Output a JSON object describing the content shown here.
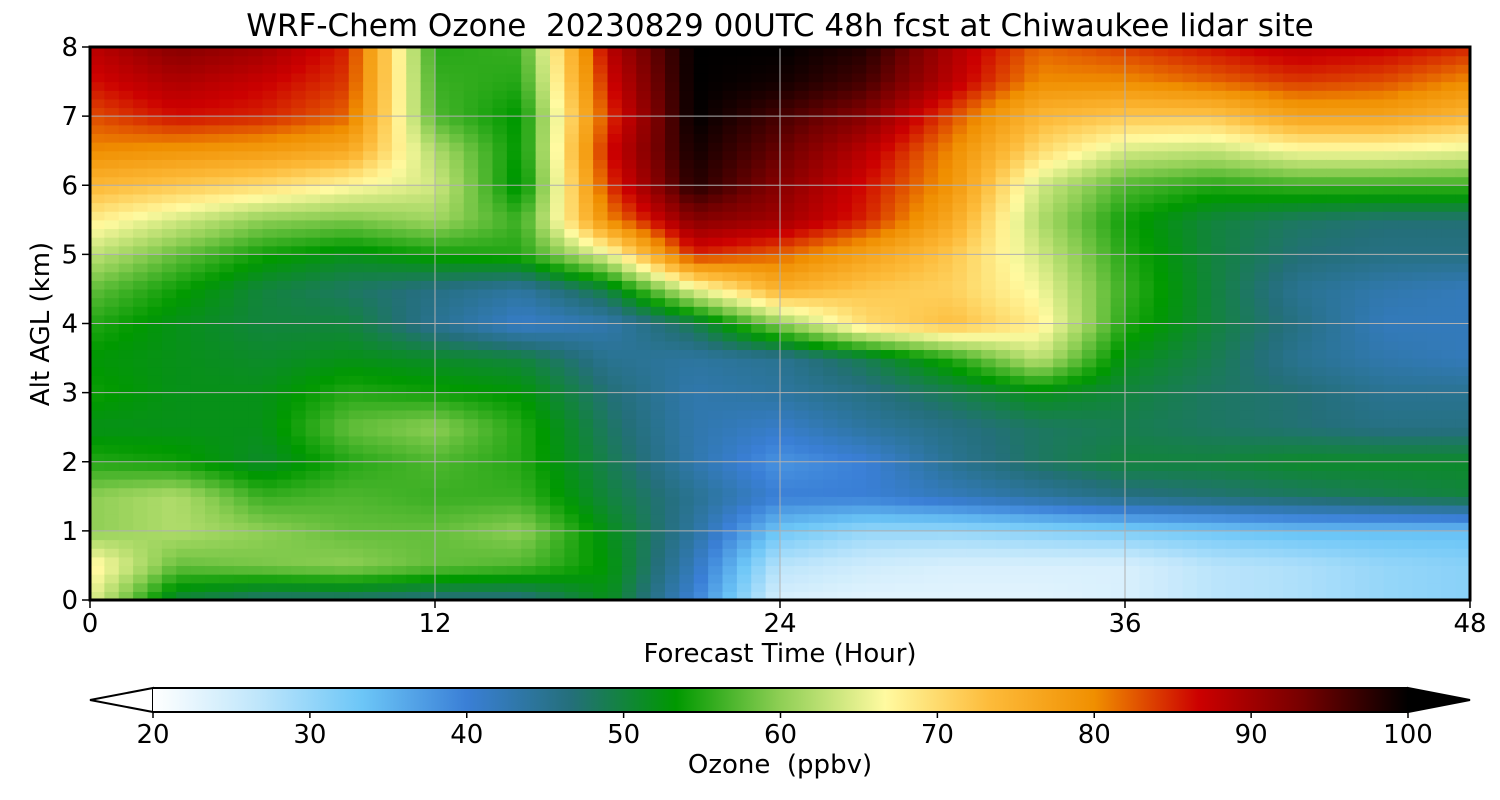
{
  "chart_data": {
    "type": "heatmap",
    "title": "WRF-Chem Ozone  20230829 00UTC 48h fcst at Chiwaukee lidar site",
    "xlabel": "Forecast Time (Hour)",
    "ylabel": "Alt AGL (km)",
    "xlim": [
      0,
      48
    ],
    "ylim": [
      0,
      8
    ],
    "xticks": [
      0,
      12,
      24,
      36,
      48
    ],
    "yticks": [
      0,
      1,
      2,
      3,
      4,
      5,
      6,
      7,
      8
    ],
    "grid": true,
    "colorbar": {
      "label": "Ozone  (ppbv)",
      "range": [
        20,
        100
      ],
      "ticks": [
        20,
        30,
        40,
        50,
        60,
        70,
        80,
        90,
        100
      ],
      "extend": "both",
      "colors": [
        "#ffffff",
        "#bfe6fb",
        "#6cc6f7",
        "#3a7fd6",
        "#246f7a",
        "#009900",
        "#8fcf55",
        "#fffaa0",
        "#fdbb3a",
        "#f08f00",
        "#cc0000",
        "#750000",
        "#000000"
      ]
    },
    "x": [
      0,
      3,
      6,
      9,
      12,
      15,
      18,
      21,
      24,
      27,
      30,
      33,
      36,
      39,
      42,
      45,
      48
    ],
    "y": [
      0,
      0.5,
      1,
      1.5,
      2,
      2.5,
      3,
      3.5,
      4,
      4.5,
      5,
      5.5,
      6,
      6.5,
      7,
      7.5,
      8
    ],
    "z": [
      [
        65,
        50,
        47,
        47,
        46,
        46,
        52,
        40,
        24,
        23,
        23,
        23,
        24,
        27,
        28,
        30,
        31
      ],
      [
        68,
        58,
        59,
        60,
        58,
        57,
        53,
        42,
        27,
        25,
        24,
        24,
        24,
        27,
        28,
        30,
        31
      ],
      [
        60,
        62,
        60,
        58,
        58,
        60,
        52,
        44,
        33,
        30,
        30,
        31,
        32,
        33,
        34,
        34,
        34
      ],
      [
        60,
        62,
        56,
        57,
        56,
        56,
        50,
        45,
        40,
        40,
        42,
        44,
        46,
        47,
        48,
        49,
        50
      ],
      [
        55,
        54,
        51,
        55,
        57,
        55,
        49,
        43,
        38,
        40,
        45,
        48,
        50,
        50,
        51,
        51,
        51
      ],
      [
        52,
        52,
        52,
        58,
        60,
        55,
        48,
        43,
        41,
        44,
        46,
        48,
        49,
        48,
        47,
        46,
        46
      ],
      [
        54,
        52,
        52,
        55,
        54,
        53,
        47,
        43,
        44,
        46,
        49,
        52,
        50,
        48,
        47,
        45,
        45
      ],
      [
        53,
        52,
        51,
        52,
        51,
        50,
        45,
        44,
        45,
        49,
        55,
        63,
        52,
        49,
        45,
        43,
        42
      ],
      [
        55,
        52,
        50,
        50,
        45,
        41,
        43,
        49,
        60,
        70,
        73,
        68,
        55,
        50,
        46,
        42,
        42
      ],
      [
        58,
        54,
        50,
        48,
        46,
        44,
        50,
        65,
        75,
        72,
        71,
        66,
        56,
        50,
        45,
        43,
        42
      ],
      [
        63,
        58,
        54,
        52,
        54,
        55,
        65,
        85,
        82,
        77,
        72,
        64,
        55,
        50,
        47,
        46,
        46
      ],
      [
        68,
        64,
        60,
        59,
        61,
        56,
        80,
        92,
        90,
        85,
        76,
        62,
        54,
        50,
        48,
        47,
        47
      ],
      [
        74,
        72,
        70,
        67,
        64,
        52,
        84,
        98,
        92,
        86,
        79,
        64,
        57,
        55,
        56,
        56,
        56
      ],
      [
        80,
        79,
        78,
        76,
        62,
        53,
        86,
        99,
        94,
        88,
        80,
        70,
        64,
        63,
        66,
        66,
        65
      ],
      [
        83,
        86,
        85,
        82,
        57,
        53,
        84,
        100,
        96,
        92,
        83,
        74,
        72,
        72,
        77,
        77,
        74
      ],
      [
        86,
        89,
        87,
        84,
        56,
        55,
        86,
        100,
        99,
        96,
        88,
        80,
        80,
        82,
        84,
        83,
        80
      ],
      [
        88,
        92,
        90,
        85,
        55,
        56,
        88,
        100,
        100,
        98,
        89,
        82,
        84,
        86,
        88,
        87,
        85
      ]
    ]
  }
}
